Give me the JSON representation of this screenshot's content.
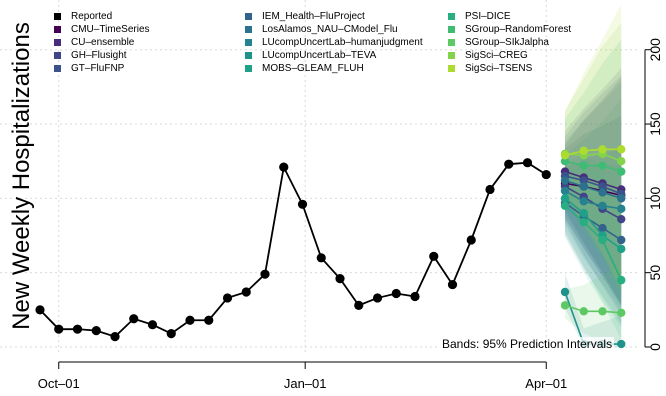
{
  "chart_data": {
    "type": "line",
    "ylabel": "New Weekly Hospitalizations",
    "annotation": "Bands: 95% Prediction Intervals",
    "x_ticks": [
      "Oct–01",
      "Jan–01",
      "Apr–01"
    ],
    "x_range": [
      "2022-09-24",
      "2023-05-06"
    ],
    "y_ticks": [
      "0",
      "50",
      "100",
      "150",
      "200"
    ],
    "ylim": [
      0,
      220
    ],
    "grid": true,
    "y_axis_side": "right",
    "legend": [
      {
        "name": "Reported",
        "color": "#000000"
      },
      {
        "name": "CMU–TimeSeries",
        "color": "#440154"
      },
      {
        "name": "CU–ensemble",
        "color": "#472d7b"
      },
      {
        "name": "GH–Flusight",
        "color": "#414487"
      },
      {
        "name": "GT–FluFNP",
        "color": "#3b528b"
      },
      {
        "name": "IEM_Health–FluProject",
        "color": "#33638d"
      },
      {
        "name": "LosAlamos_NAU–CModel_Flu",
        "color": "#2c728e"
      },
      {
        "name": "LUcompUncertLab–humanjudgment",
        "color": "#26828e"
      },
      {
        "name": "LUcompUncertLab–TEVA",
        "color": "#21918c"
      },
      {
        "name": "MOBS–GLEAM_FLUH",
        "color": "#1fa088"
      },
      {
        "name": "PSI–DICE",
        "color": "#28ae80"
      },
      {
        "name": "SGroup–RandomForest",
        "color": "#3fbc73"
      },
      {
        "name": "SGroup–SIkJalpha",
        "color": "#5ec962"
      },
      {
        "name": "SigSci–CREG",
        "color": "#84d44b"
      },
      {
        "name": "SigSci–TSENS",
        "color": "#addc30"
      }
    ],
    "reported": {
      "x": [
        "2022-09-24",
        "2022-10-01",
        "2022-10-08",
        "2022-10-15",
        "2022-10-22",
        "2022-10-29",
        "2022-11-05",
        "2022-11-12",
        "2022-11-19",
        "2022-11-26",
        "2022-12-03",
        "2022-12-10",
        "2022-12-17",
        "2022-12-24",
        "2022-12-31",
        "2023-01-07",
        "2023-01-14",
        "2023-01-21",
        "2023-01-28",
        "2023-02-04",
        "2023-02-11",
        "2023-02-18",
        "2023-02-25",
        "2023-03-04",
        "2023-03-11",
        "2023-03-18",
        "2023-03-25",
        "2023-04-01"
      ],
      "y": [
        25,
        12,
        12,
        11,
        7,
        19,
        15,
        9,
        18,
        18,
        33,
        37,
        49,
        121,
        96,
        60,
        46,
        28,
        33,
        36,
        34,
        61,
        42,
        72,
        106,
        123,
        124,
        116
      ]
    },
    "forecast_x": [
      "2023-04-08",
      "2023-04-15",
      "2023-04-22",
      "2023-04-29"
    ],
    "forecast_series": [
      {
        "name": "CMU–TimeSeries",
        "values": [
          110,
          108,
          105,
          102
        ]
      },
      {
        "name": "CU–ensemble",
        "values": [
          118,
          114,
          110,
          106
        ]
      },
      {
        "name": "GH–Flusight",
        "values": [
          108,
          101,
          93,
          86
        ]
      },
      {
        "name": "GT–FluFNP",
        "values": [
          115,
          112,
          108,
          103
        ]
      },
      {
        "name": "IEM_Health–FluProject",
        "values": [
          97,
          88,
          80,
          72
        ]
      },
      {
        "name": "LosAlamos_NAU–CModel_Flu",
        "values": [
          112,
          108,
          104,
          100
        ]
      },
      {
        "name": "LUcompUncertLab–humanjudgment",
        "values": [
          105,
          98,
          95,
          93
        ]
      },
      {
        "name": "LUcompUncertLab–TEVA",
        "values": [
          37,
          2,
          2,
          2
        ]
      },
      {
        "name": "MOBS–GLEAM_FLUH",
        "values": [
          100,
          90,
          75,
          66
        ]
      },
      {
        "name": "PSI–DICE",
        "values": [
          95,
          84,
          72,
          45
        ]
      },
      {
        "name": "SGroup–RandomForest",
        "values": [
          125,
          122,
          122,
          118
        ]
      },
      {
        "name": "SGroup–SIkJalpha",
        "values": [
          28,
          24,
          24,
          23
        ]
      },
      {
        "name": "SigSci–CREG",
        "values": [
          130,
          129,
          130,
          125
        ]
      },
      {
        "name": "SigSci–TSENS",
        "values": [
          129,
          132,
          133,
          133
        ]
      }
    ]
  }
}
